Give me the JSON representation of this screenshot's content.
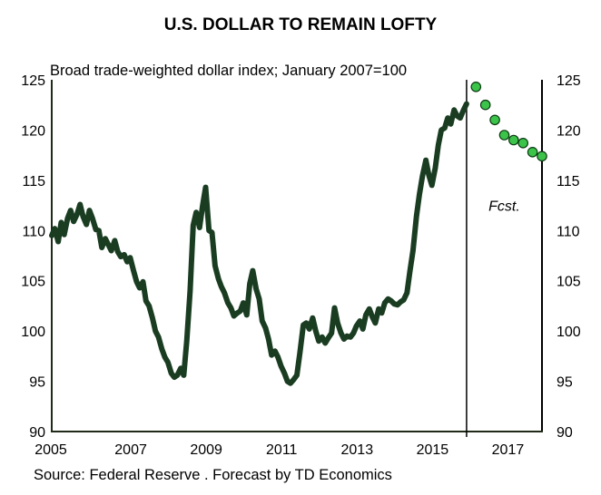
{
  "chart_data": {
    "type": "line",
    "title": "U.S. DOLLAR TO REMAIN LOFTY",
    "subtitle": "Broad trade-weighted dollar index; January 2007=100",
    "source": "Source: Federal Reserve . Forecast by TD Economics",
    "forecast_label": "Fcst.",
    "xlabel": "",
    "ylabel": "",
    "xlim": [
      2005,
      2018
    ],
    "ylim": [
      90,
      125
    ],
    "forecast_start": 2016,
    "x_ticks": [
      "2005",
      "2007",
      "2009",
      "2011",
      "2013",
      "2015",
      "2017"
    ],
    "x_tick_values": [
      2005,
      2007,
      2009,
      2011,
      2013,
      2015,
      2017
    ],
    "y_ticks": [
      "90",
      "95",
      "100",
      "105",
      "110",
      "115",
      "120",
      "125"
    ],
    "y_tick_values": [
      90,
      95,
      100,
      105,
      110,
      115,
      120,
      125
    ],
    "grid": false,
    "colors": {
      "history": "#1a3d22",
      "forecast_fill": "#3cc44a",
      "forecast_stroke": "#0b3a12",
      "axis": "#1f2a18"
    },
    "series": [
      {
        "name": "Broad trade-weighted dollar index",
        "kind": "history",
        "x": [
          2005.0,
          2005.08,
          2005.17,
          2005.25,
          2005.33,
          2005.42,
          2005.5,
          2005.58,
          2005.67,
          2005.75,
          2005.83,
          2005.92,
          2006.0,
          2006.08,
          2006.17,
          2006.25,
          2006.33,
          2006.42,
          2006.5,
          2006.58,
          2006.67,
          2006.75,
          2006.83,
          2006.92,
          2007.0,
          2007.08,
          2007.17,
          2007.25,
          2007.33,
          2007.42,
          2007.5,
          2007.58,
          2007.67,
          2007.75,
          2007.83,
          2007.92,
          2008.0,
          2008.08,
          2008.17,
          2008.25,
          2008.33,
          2008.42,
          2008.5,
          2008.58,
          2008.67,
          2008.75,
          2008.83,
          2008.92,
          2009.0,
          2009.08,
          2009.17,
          2009.25,
          2009.33,
          2009.42,
          2009.5,
          2009.58,
          2009.67,
          2009.75,
          2009.83,
          2009.92,
          2010.0,
          2010.08,
          2010.17,
          2010.25,
          2010.33,
          2010.42,
          2010.5,
          2010.58,
          2010.67,
          2010.75,
          2010.83,
          2010.92,
          2011.0,
          2011.08,
          2011.17,
          2011.25,
          2011.33,
          2011.42,
          2011.5,
          2011.58,
          2011.67,
          2011.75,
          2011.83,
          2011.92,
          2012.0,
          2012.08,
          2012.17,
          2012.25,
          2012.33,
          2012.42,
          2012.5,
          2012.58,
          2012.67,
          2012.75,
          2012.83,
          2012.92,
          2013.0,
          2013.08,
          2013.17,
          2013.25,
          2013.33,
          2013.42,
          2013.5,
          2013.58,
          2013.67,
          2013.75,
          2013.83,
          2013.92,
          2014.0,
          2014.08,
          2014.17,
          2014.25,
          2014.33,
          2014.42,
          2014.5,
          2014.58,
          2014.67,
          2014.75,
          2014.83,
          2014.92,
          2015.0,
          2015.08,
          2015.17,
          2015.25,
          2015.33,
          2015.42,
          2015.5,
          2015.58,
          2015.67,
          2015.75,
          2015.83,
          2015.92,
          2016.0
        ],
        "values": [
          109.5,
          110.2,
          108.9,
          110.8,
          109.6,
          111.2,
          112.0,
          110.9,
          111.6,
          112.6,
          111.4,
          110.6,
          112.0,
          111.2,
          110.1,
          110.0,
          108.3,
          109.2,
          108.6,
          108.0,
          109.0,
          107.9,
          107.4,
          107.6,
          106.9,
          107.3,
          106.0,
          104.9,
          104.3,
          104.9,
          103.0,
          102.5,
          101.3,
          100.0,
          99.4,
          98.2,
          97.4,
          96.9,
          95.8,
          95.4,
          95.6,
          96.3,
          95.6,
          99.0,
          104.0,
          110.5,
          111.8,
          110.3,
          112.5,
          114.3,
          110.0,
          109.8,
          106.5,
          105.2,
          104.4,
          103.8,
          102.8,
          102.3,
          101.5,
          101.8,
          102.0,
          102.8,
          101.6,
          104.7,
          106.0,
          104.2,
          103.2,
          101.0,
          100.3,
          99.2,
          97.6,
          98.0,
          97.4,
          96.5,
          95.8,
          95.0,
          94.8,
          95.2,
          95.6,
          97.8,
          100.6,
          100.8,
          100.2,
          101.3,
          100.0,
          99.0,
          99.4,
          98.8,
          99.3,
          99.8,
          102.3,
          100.8,
          99.8,
          99.2,
          99.5,
          99.4,
          99.8,
          100.5,
          101.0,
          100.2,
          101.6,
          102.2,
          101.4,
          100.8,
          102.2,
          101.8,
          102.8,
          103.2,
          103.0,
          102.7,
          102.6,
          102.9,
          103.1,
          103.8,
          106.0,
          108.0,
          111.4,
          113.6,
          115.4,
          117.0,
          115.5,
          114.5,
          116.2,
          118.5,
          120.0,
          120.2,
          121.2,
          120.6,
          122.0,
          121.4,
          121.2,
          122.0,
          122.6
        ]
      },
      {
        "name": "TD Economics forecast",
        "kind": "forecast",
        "x": [
          2016.25,
          2016.5,
          2016.75,
          2017.0,
          2017.25,
          2017.5,
          2017.75,
          2018.0
        ],
        "values": [
          124.3,
          122.5,
          121.0,
          119.5,
          119.0,
          118.7,
          117.8,
          117.4
        ]
      }
    ]
  }
}
